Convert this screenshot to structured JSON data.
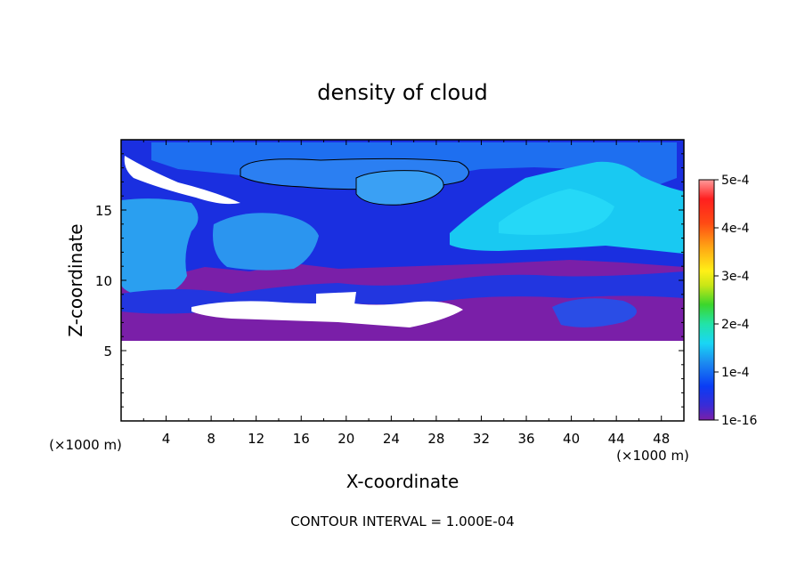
{
  "chart_data": {
    "type": "heatmap",
    "title": "density of cloud",
    "xlabel": "X-coordinate",
    "ylabel": "Z-coordinate",
    "x_unit_left": "(×1000 m)",
    "x_unit_right": "(×1000 m)",
    "xlim": [
      0,
      50
    ],
    "ylim": [
      0,
      20
    ],
    "x_ticks": [
      4,
      8,
      12,
      16,
      20,
      24,
      28,
      32,
      36,
      40,
      44,
      48
    ],
    "y_ticks": [
      5,
      10,
      15
    ],
    "colorbar": {
      "min": 1e-16,
      "max": 0.0005,
      "ticks": [
        {
          "label": "5e-4",
          "value": 0.0005
        },
        {
          "label": "4e-4",
          "value": 0.0004
        },
        {
          "label": "3e-4",
          "value": 0.0003
        },
        {
          "label": "2e-4",
          "value": 0.0002
        },
        {
          "label": "1e-4",
          "value": 0.0001
        },
        {
          "label": "1e-16",
          "value": 1e-16
        }
      ],
      "colors": [
        "#7a1fa8",
        "#3a2bd6",
        "#0a3cf5",
        "#1c8cf0",
        "#19d6f5",
        "#22e3a8",
        "#3bd62c",
        "#c8e616",
        "#fff017",
        "#ffa514",
        "#ff4a14",
        "#ff1f1f",
        "#ff9a9a"
      ]
    },
    "cloud_layer_z": [
      6,
      19.5
    ],
    "grid": false,
    "legend": "colorbar-right"
  },
  "footer": {
    "contour_interval": "CONTOUR INTERVAL = 1.000E-04"
  }
}
